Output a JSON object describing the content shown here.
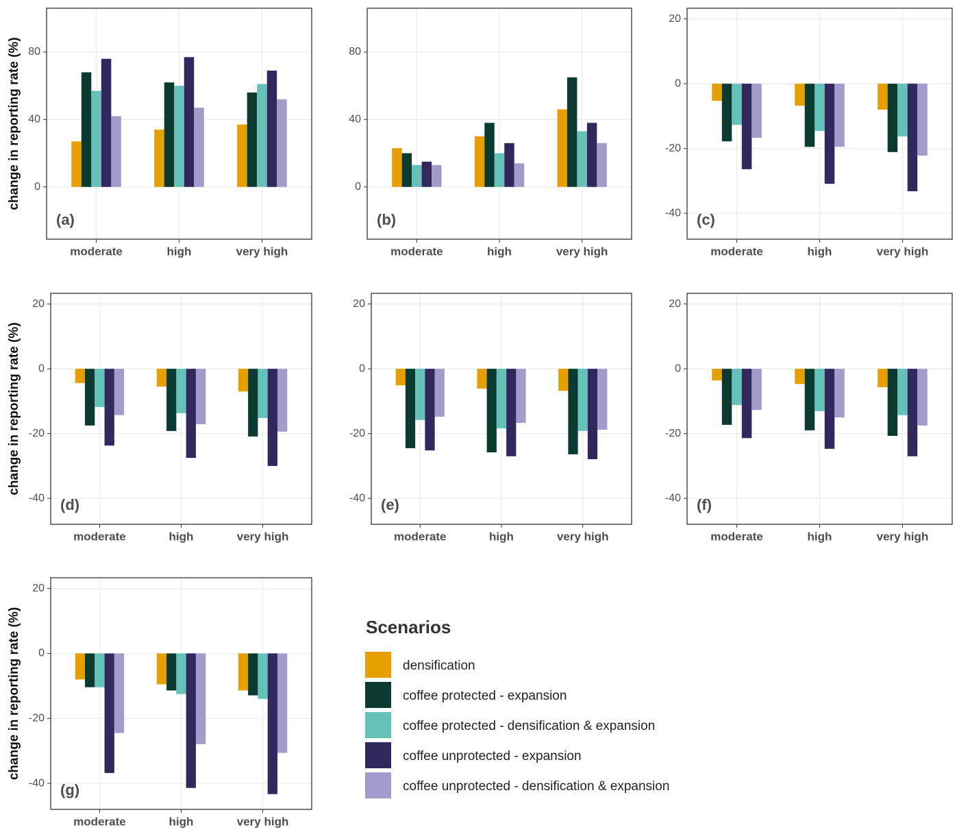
{
  "chart_data": [
    {
      "type": "bar",
      "panel_label": "(a)",
      "ylabel": "change in reporting rate (%)",
      "categories": [
        "moderate",
        "high",
        "very high"
      ],
      "series": [
        {
          "name": "densification",
          "color": "#e69f00",
          "values": [
            27,
            34,
            37
          ]
        },
        {
          "name": "coffee protected - expansion",
          "color": "#0b3a30",
          "values": [
            68,
            62,
            56
          ]
        },
        {
          "name": "coffee protected - densification & expansion",
          "color": "#66c2b8",
          "values": [
            57,
            60,
            61
          ]
        },
        {
          "name": "coffee unprotected - expansion",
          "color": "#33285e",
          "values": [
            76,
            77,
            69
          ]
        },
        {
          "name": "coffee unprotected - densification & expansion",
          "color": "#a39bc9",
          "values": [
            42,
            47,
            52
          ]
        }
      ],
      "ylim": [
        -31,
        106
      ],
      "yticks": [
        0,
        40,
        80
      ],
      "grid": true
    },
    {
      "type": "bar",
      "panel_label": "(b)",
      "categories": [
        "moderate",
        "high",
        "very high"
      ],
      "series": [
        {
          "name": "densification",
          "color": "#e69f00",
          "values": [
            23,
            30,
            46
          ]
        },
        {
          "name": "coffee protected - expansion",
          "color": "#0b3a30",
          "values": [
            20,
            38,
            65
          ]
        },
        {
          "name": "coffee protected - densification & expansion",
          "color": "#66c2b8",
          "values": [
            13,
            20,
            33
          ]
        },
        {
          "name": "coffee unprotected - expansion",
          "color": "#33285e",
          "values": [
            15,
            26,
            38
          ]
        },
        {
          "name": "coffee unprotected - densification & expansion",
          "color": "#a39bc9",
          "values": [
            13,
            14,
            26
          ]
        }
      ],
      "ylim": [
        -31,
        106
      ],
      "yticks": [
        0,
        40,
        80
      ],
      "grid": true
    },
    {
      "type": "bar",
      "panel_label": "(c)",
      "categories": [
        "moderate",
        "high",
        "very high"
      ],
      "series": [
        {
          "name": "densification",
          "color": "#e69f00",
          "values": [
            -5.3,
            -6.8,
            -8
          ]
        },
        {
          "name": "coffee protected - expansion",
          "color": "#0b3a30",
          "values": [
            -17.8,
            -19.5,
            -21.1
          ]
        },
        {
          "name": "coffee protected - densification & expansion",
          "color": "#66c2b8",
          "values": [
            -12.7,
            -14.6,
            -16.3
          ]
        },
        {
          "name": "coffee unprotected - expansion",
          "color": "#33285e",
          "values": [
            -26.4,
            -30.9,
            -33.2
          ]
        },
        {
          "name": "coffee unprotected - densification & expansion",
          "color": "#a39bc9",
          "values": [
            -16.7,
            -19.5,
            -22.2
          ]
        }
      ],
      "ylim": [
        -48,
        23.3
      ],
      "yticks": [
        -40,
        -20,
        0,
        20
      ],
      "grid": true
    },
    {
      "type": "bar",
      "panel_label": "(d)",
      "ylabel": "change in reporting rate (%)",
      "categories": [
        "moderate",
        "high",
        "very high"
      ],
      "series": [
        {
          "name": "densification",
          "color": "#e69f00",
          "values": [
            -4.4,
            -5.5,
            -7
          ]
        },
        {
          "name": "coffee protected - expansion",
          "color": "#0b3a30",
          "values": [
            -17.5,
            -19.2,
            -20.9
          ]
        },
        {
          "name": "coffee protected - densification & expansion",
          "color": "#66c2b8",
          "values": [
            -11.8,
            -13.7,
            -15.2
          ]
        },
        {
          "name": "coffee unprotected - expansion",
          "color": "#33285e",
          "values": [
            -23.7,
            -27.5,
            -30
          ]
        },
        {
          "name": "coffee unprotected - densification & expansion",
          "color": "#a39bc9",
          "values": [
            -14.3,
            -17.1,
            -19.4
          ]
        }
      ],
      "ylim": [
        -48,
        23.3
      ],
      "yticks": [
        -40,
        -20,
        0,
        20
      ],
      "grid": true
    },
    {
      "type": "bar",
      "panel_label": "(e)",
      "categories": [
        "moderate",
        "high",
        "very high"
      ],
      "series": [
        {
          "name": "densification",
          "color": "#e69f00",
          "values": [
            -5.1,
            -6.1,
            -6.8
          ]
        },
        {
          "name": "coffee protected - expansion",
          "color": "#0b3a30",
          "values": [
            -24.5,
            -25.8,
            -26.4
          ]
        },
        {
          "name": "coffee protected - densification & expansion",
          "color": "#66c2b8",
          "values": [
            -15.8,
            -18.4,
            -19.2
          ]
        },
        {
          "name": "coffee unprotected - expansion",
          "color": "#33285e",
          "values": [
            -25.2,
            -27,
            -27.9
          ]
        },
        {
          "name": "coffee unprotected - densification & expansion",
          "color": "#a39bc9",
          "values": [
            -14.8,
            -16.7,
            -18.8
          ]
        }
      ],
      "ylim": [
        -48,
        23.3
      ],
      "yticks": [
        -40,
        -20,
        0,
        20
      ],
      "grid": true
    },
    {
      "type": "bar",
      "panel_label": "(f)",
      "categories": [
        "moderate",
        "high",
        "very high"
      ],
      "series": [
        {
          "name": "densification",
          "color": "#e69f00",
          "values": [
            -3.6,
            -4.7,
            -5.7
          ]
        },
        {
          "name": "coffee protected - expansion",
          "color": "#0b3a30",
          "values": [
            -17.3,
            -19,
            -20.7
          ]
        },
        {
          "name": "coffee protected - densification & expansion",
          "color": "#66c2b8",
          "values": [
            -11.2,
            -13.1,
            -14.3
          ]
        },
        {
          "name": "coffee unprotected - expansion",
          "color": "#33285e",
          "values": [
            -21.4,
            -24.7,
            -27
          ]
        },
        {
          "name": "coffee unprotected - densification & expansion",
          "color": "#a39bc9",
          "values": [
            -12.7,
            -15,
            -17.5
          ]
        }
      ],
      "ylim": [
        -48,
        23.3
      ],
      "yticks": [
        -40,
        -20,
        0,
        20
      ],
      "grid": true
    },
    {
      "type": "bar",
      "panel_label": "(g)",
      "ylabel": "change in reporting rate (%)",
      "categories": [
        "moderate",
        "high",
        "very high"
      ],
      "series": [
        {
          "name": "densification",
          "color": "#e69f00",
          "values": [
            -8,
            -9.5,
            -11.4
          ]
        },
        {
          "name": "coffee protected - expansion",
          "color": "#0b3a30",
          "values": [
            -10.4,
            -11.4,
            -12.9
          ]
        },
        {
          "name": "coffee protected - densification & expansion",
          "color": "#66c2b8",
          "values": [
            -10.4,
            -12.5,
            -14
          ]
        },
        {
          "name": "coffee unprotected - expansion",
          "color": "#33285e",
          "values": [
            -36.8,
            -41.4,
            -43.3
          ]
        },
        {
          "name": "coffee unprotected - densification & expansion",
          "color": "#a39bc9",
          "values": [
            -24.5,
            -27.9,
            -30.6
          ]
        }
      ],
      "ylim": [
        -48,
        23.3
      ],
      "yticks": [
        -40,
        -20,
        0,
        20
      ],
      "grid": true
    }
  ],
  "legend": {
    "title": "Scenarios"
  }
}
